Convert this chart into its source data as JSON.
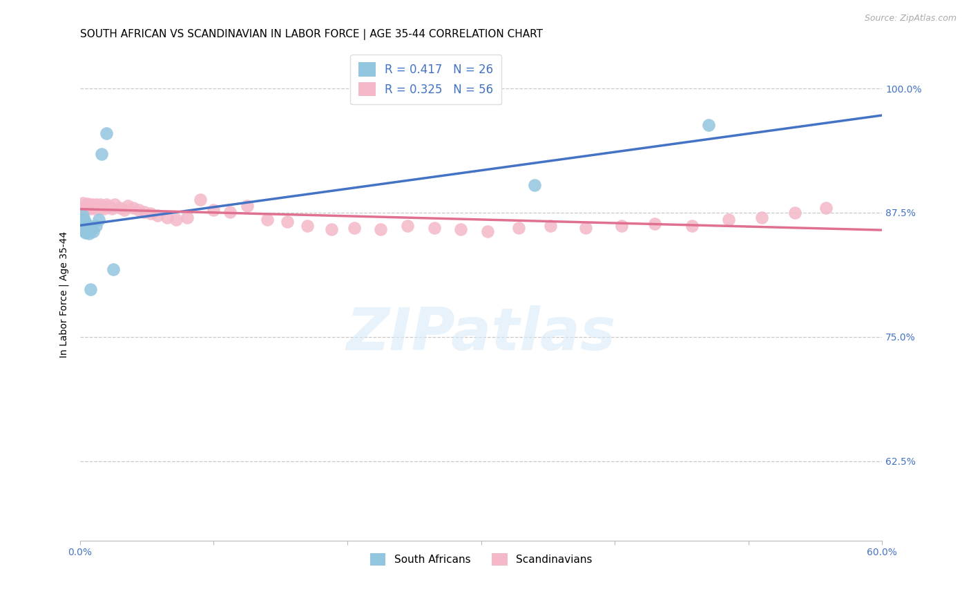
{
  "title": "SOUTH AFRICAN VS SCANDINAVIAN IN LABOR FORCE | AGE 35-44 CORRELATION CHART",
  "source": "Source: ZipAtlas.com",
  "ylabel": "In Labor Force | Age 35-44",
  "xlim": [
    0.0,
    0.6
  ],
  "ylim": [
    0.545,
    1.04
  ],
  "x_tick_positions": [
    0.0,
    0.1,
    0.2,
    0.3,
    0.4,
    0.5,
    0.6
  ],
  "x_tick_labels": [
    "0.0%",
    "",
    "",
    "",
    "",
    "",
    "60.0%"
  ],
  "y_tick_positions": [
    0.625,
    0.75,
    0.875,
    1.0
  ],
  "y_tick_labels": [
    "62.5%",
    "75.0%",
    "87.5%",
    "100.0%"
  ],
  "south_africans_x": [
    0.001,
    0.001,
    0.002,
    0.002,
    0.002,
    0.003,
    0.003,
    0.003,
    0.004,
    0.004,
    0.005,
    0.005,
    0.006,
    0.006,
    0.007,
    0.007,
    0.008,
    0.009,
    0.01,
    0.012,
    0.014,
    0.016,
    0.02,
    0.025,
    0.34,
    0.47
  ],
  "south_africans_y": [
    0.862,
    0.868,
    0.858,
    0.864,
    0.872,
    0.856,
    0.862,
    0.868,
    0.855,
    0.862,
    0.858,
    0.864,
    0.856,
    0.862,
    0.854,
    0.862,
    0.798,
    0.858,
    0.856,
    0.862,
    0.868,
    0.934,
    0.955,
    0.818,
    0.903,
    0.963
  ],
  "scandinavians_x": [
    0.001,
    0.002,
    0.003,
    0.004,
    0.005,
    0.006,
    0.007,
    0.008,
    0.009,
    0.01,
    0.011,
    0.012,
    0.013,
    0.014,
    0.015,
    0.016,
    0.018,
    0.02,
    0.022,
    0.024,
    0.026,
    0.03,
    0.033,
    0.036,
    0.04,
    0.044,
    0.048,
    0.053,
    0.058,
    0.065,
    0.072,
    0.08,
    0.09,
    0.1,
    0.112,
    0.125,
    0.14,
    0.155,
    0.17,
    0.188,
    0.205,
    0.225,
    0.245,
    0.265,
    0.285,
    0.305,
    0.328,
    0.352,
    0.378,
    0.405,
    0.43,
    0.458,
    0.485,
    0.51,
    0.535,
    0.558
  ],
  "scandinavians_y": [
    0.88,
    0.885,
    0.878,
    0.882,
    0.88,
    0.884,
    0.882,
    0.879,
    0.883,
    0.881,
    0.879,
    0.883,
    0.881,
    0.879,
    0.883,
    0.881,
    0.879,
    0.883,
    0.881,
    0.879,
    0.883,
    0.88,
    0.878,
    0.882,
    0.88,
    0.878,
    0.876,
    0.874,
    0.872,
    0.87,
    0.868,
    0.87,
    0.888,
    0.878,
    0.876,
    0.882,
    0.868,
    0.866,
    0.862,
    0.858,
    0.86,
    0.858,
    0.862,
    0.86,
    0.858,
    0.856,
    0.86,
    0.862,
    0.86,
    0.862,
    0.864,
    0.862,
    0.868,
    0.87,
    0.875,
    0.88
  ],
  "sa_color": "#92c5de",
  "scand_color": "#f4b8c8",
  "sa_line_color": "#4472c4",
  "scand_line_color": "#e07090",
  "sa_R": 0.417,
  "sa_N": 26,
  "scand_R": 0.325,
  "scand_N": 56,
  "legend_text_color": "#4472c4",
  "watermark_text": "ZIPatlas",
  "background_color": "#ffffff",
  "grid_color": "#c8c8c8",
  "title_fontsize": 11,
  "tick_label_color": "#4472c4",
  "tick_label_fontsize": 10
}
